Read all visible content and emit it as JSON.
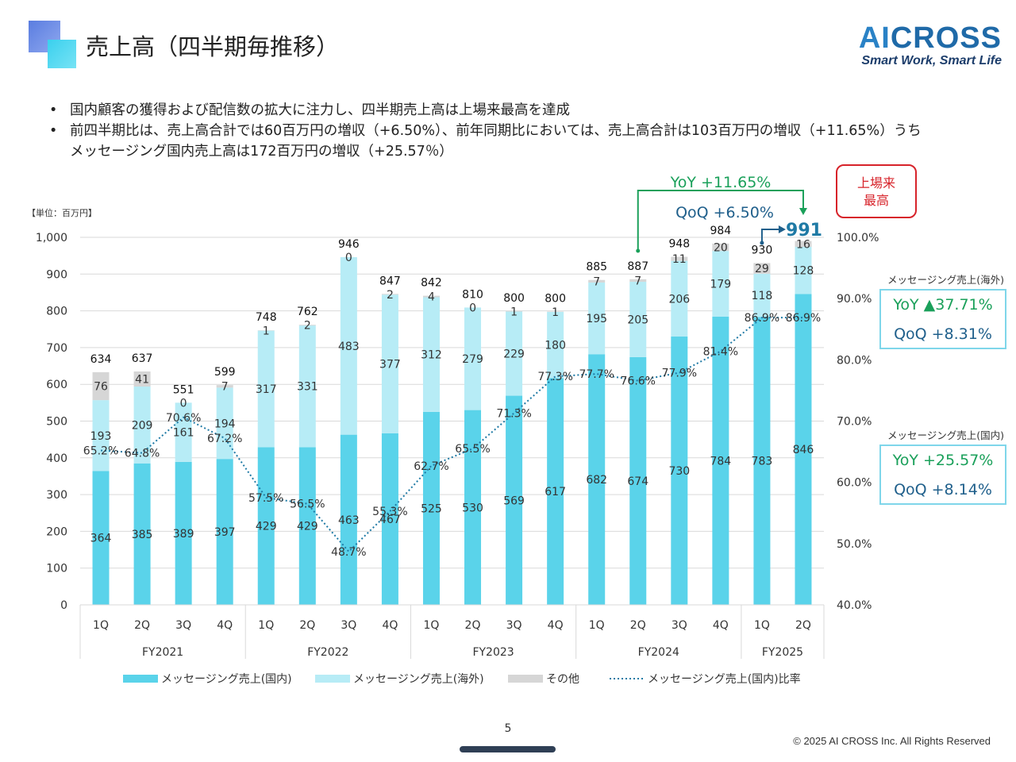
{
  "header": {
    "title": "売上高（四半期毎推移）",
    "brand_name_a": "AI",
    "brand_name_b": "CROSS",
    "brand_tagline": "Smart Work, Smart Life"
  },
  "bullets": [
    "国内顧客の獲得および配信数の拡大に注力し、四半期売上高は上場来最高を達成",
    "前四半期比は、売上高合計では60百万円の増収（+6.50%）、前年同期比においては、売上高合計は103百万円の増収（+11.65%）うちメッセージング国内売上高は172百万円の増収（+25.57％）"
  ],
  "record_badge": [
    "上場来",
    "最高"
  ],
  "callouts": {
    "yoy_total": "YoY +11.65%",
    "qoq_total": "QoQ +6.50%",
    "latest_total": "991"
  },
  "side_panels": [
    {
      "label": "メッセージング売上(海外)",
      "yoy": "YoY ▲37.71%",
      "qoq": "QoQ +8.31%"
    },
    {
      "label": "メッセージング売上(国内)",
      "yoy": "YoY +25.57%",
      "qoq": "QoQ +8.14%"
    }
  ],
  "footer": {
    "page_number": "5",
    "copyright": "© 2025 AI CROSS Inc. All Rights Reserved"
  },
  "colors": {
    "domestic": "#5ad3ea",
    "overseas": "#b7ecf6",
    "other": "#d6d6d6",
    "ratio_line": "#1f7aa5",
    "yoy": "#1aa05a",
    "qoq": "#1f5f8b",
    "record": "#d7232a"
  },
  "chart_data": {
    "type": "bar",
    "stacked": true,
    "unit_label": "【単位：百万円】",
    "categories": [
      "1Q",
      "2Q",
      "3Q",
      "4Q",
      "1Q",
      "2Q",
      "3Q",
      "4Q",
      "1Q",
      "2Q",
      "3Q",
      "4Q",
      "1Q",
      "2Q",
      "3Q",
      "4Q",
      "1Q",
      "2Q"
    ],
    "fiscal_years": [
      {
        "label": "FY2021",
        "count": 4
      },
      {
        "label": "FY2022",
        "count": 4
      },
      {
        "label": "FY2023",
        "count": 4
      },
      {
        "label": "FY2024",
        "count": 4
      },
      {
        "label": "FY2025",
        "count": 2
      }
    ],
    "series": [
      {
        "name": "メッセージング売上(国内)",
        "values": [
          364,
          385,
          389,
          397,
          429,
          429,
          463,
          467,
          525,
          530,
          569,
          617,
          682,
          674,
          730,
          784,
          783,
          846
        ]
      },
      {
        "name": "メッセージング売上(海外)",
        "values": [
          193,
          209,
          161,
          194,
          317,
          331,
          483,
          377,
          312,
          279,
          229,
          180,
          195,
          205,
          206,
          179,
          118,
          128
        ]
      },
      {
        "name": "その他",
        "values": [
          76,
          41,
          0,
          7,
          1,
          2,
          0,
          2,
          4,
          0,
          1,
          1,
          7,
          7,
          11,
          20,
          29,
          16
        ]
      }
    ],
    "totals": [
      "634",
      "637",
      "551",
      "599",
      "748",
      "762",
      "946",
      "847",
      "842",
      "810",
      "800",
      "800",
      "885",
      "887",
      "948",
      "984",
      "930",
      "991"
    ],
    "ratio_series": {
      "name": "メッセージング売上(国内)比率",
      "values": [
        65.2,
        64.8,
        70.6,
        67.2,
        57.5,
        56.5,
        48.7,
        55.3,
        62.7,
        65.5,
        71.3,
        77.3,
        77.7,
        76.6,
        77.9,
        81.4,
        86.9,
        86.9
      ]
    },
    "ylim": [
      0,
      1000
    ],
    "yticks": [
      "0",
      "100",
      "200",
      "300",
      "400",
      "500",
      "600",
      "700",
      "800",
      "900",
      "1,000"
    ],
    "y2lim": [
      40,
      100
    ],
    "y2ticks": [
      "40.0%",
      "50.0%",
      "60.0%",
      "70.0%",
      "80.0%",
      "90.0%",
      "100.0%"
    ],
    "legend_position": "bottom",
    "grid": true
  }
}
